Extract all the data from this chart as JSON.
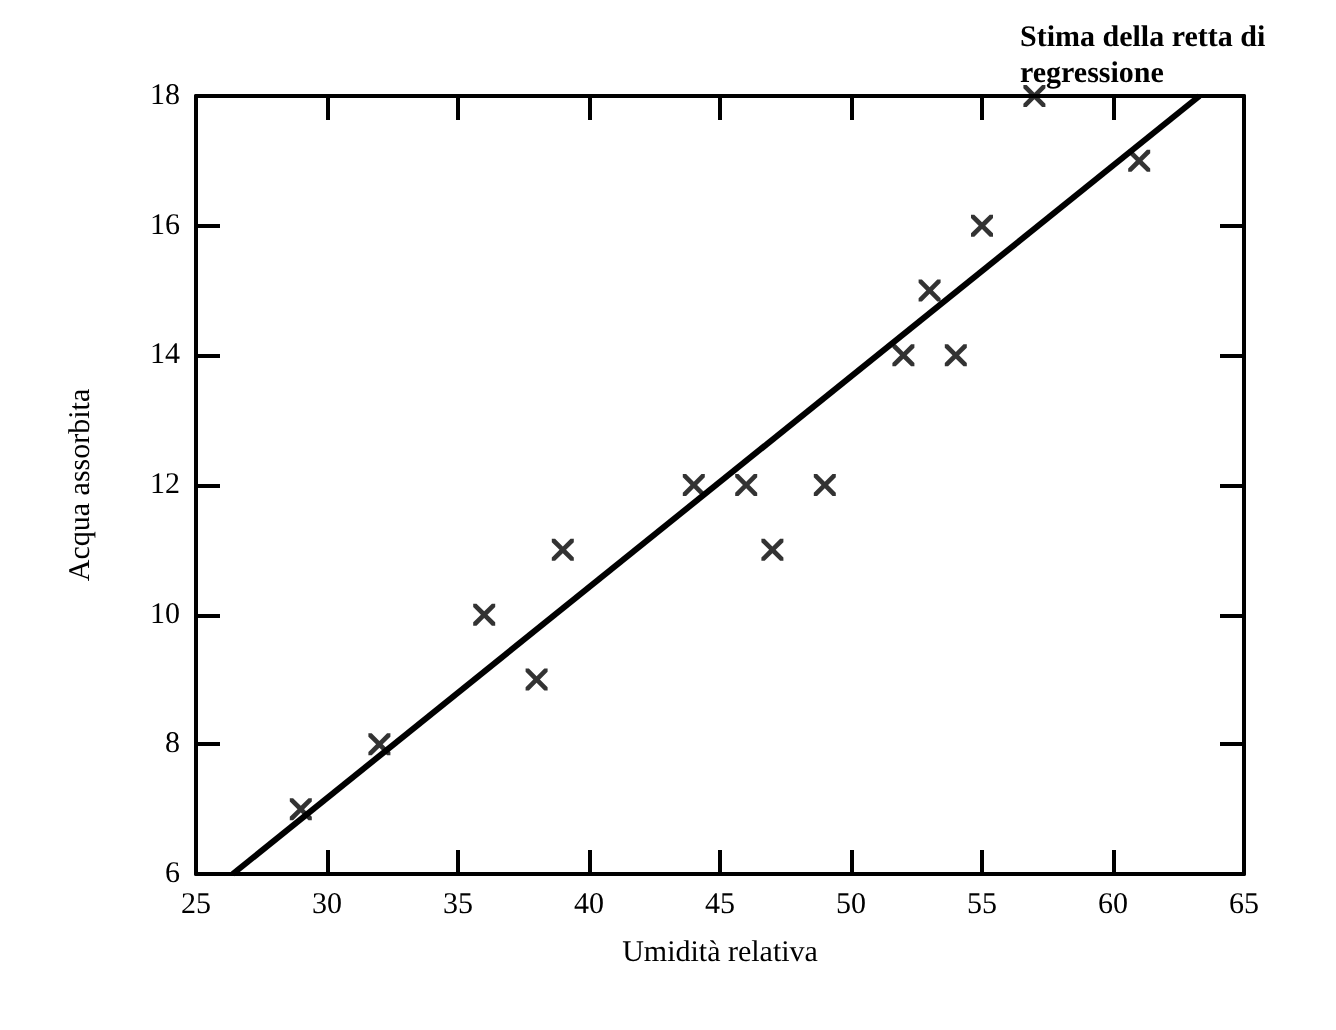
{
  "chart_data": {
    "type": "scatter",
    "xlabel": "Umidità relativa",
    "ylabel": "Acqua assorbita",
    "annotations": [
      "Stima della retta di regressione"
    ],
    "marker": "cross",
    "grid": false,
    "xlim": [
      25,
      65
    ],
    "xticks": [
      25,
      30,
      35,
      40,
      45,
      50,
      55,
      60,
      65
    ],
    "ylim": [
      6,
      18
    ],
    "yticks": [
      6,
      8,
      10,
      12,
      14,
      16,
      18
    ],
    "series": [
      {
        "color": "#000000",
        "x": [
          29,
          32,
          36,
          38,
          39,
          44,
          46,
          47,
          49,
          52,
          53,
          54,
          55,
          57,
          61
        ],
        "values": [
          7,
          8,
          10,
          9,
          11,
          12,
          12,
          11,
          12,
          14,
          15,
          14,
          16,
          18,
          17
        ]
      },
      {
        "type": "line",
        "color": "#000000",
        "marker": "none",
        "x": [
          26.4,
          63.3
        ],
        "values": [
          6,
          18
        ]
      }
    ]
  }
}
